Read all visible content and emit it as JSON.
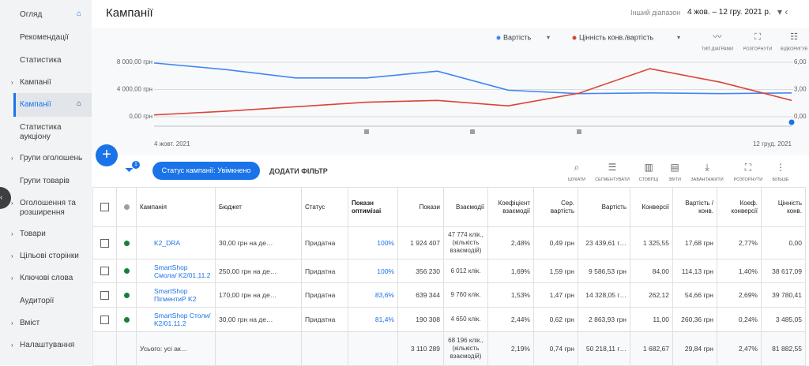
{
  "sidebar": {
    "items": [
      "Огляд",
      "Рекомендації",
      "Статистика",
      "Кампанії",
      "Кампанії",
      "Статистика аукціону",
      "Групи оголошень",
      "Групи товарів",
      "Оголошення та розширення",
      "Товари",
      "Цільові сторінки",
      "Ключові слова",
      "Аудиторії",
      "Вміст",
      "Налаштування"
    ]
  },
  "header": {
    "title": "Кампанії",
    "range_label": "Інший діапазон",
    "range": "4 жов. – 12 гру. 2021 р."
  },
  "chart_tools": [
    "ТИП ДІАГРАМИ",
    "РОЗГОРНУТИ",
    "ВІДКОРИГУВ"
  ],
  "chart_data": {
    "type": "line",
    "categories": [
      "4 жовт. 2021",
      null,
      null,
      null,
      null,
      null,
      null,
      null,
      null,
      "12 груд. 2021"
    ],
    "series": [
      {
        "name": "Вартість",
        "color": "#4285f4",
        "values": [
          7900,
          6950,
          5700,
          5700,
          6700,
          3900,
          3400,
          3500,
          3400,
          3500
        ]
      },
      {
        "name": "Цінність конв./вартість",
        "color": "#db4437",
        "axis": "y2",
        "values": [
          0.2,
          0.6,
          1.1,
          1.6,
          1.8,
          1.2,
          2.6,
          5.3,
          3.8,
          1.8
        ]
      }
    ],
    "ylim": [
      0,
      8000
    ],
    "yticks": [
      {
        "value": 0,
        "label": "0,00 грн"
      },
      {
        "value": 4000,
        "label": "4 000,00 грн"
      },
      {
        "value": 8000,
        "label": "8 000,00 грн"
      }
    ],
    "y2lim": [
      0,
      6
    ],
    "y2ticks": [
      {
        "value": 0,
        "label": "0,00"
      },
      {
        "value": 3,
        "label": "3,00"
      },
      {
        "value": 6,
        "label": "6,00"
      }
    ],
    "grid": true
  },
  "toolbar": {
    "filter_count": "1",
    "chip": "Статус кампанії: Увімкнено",
    "add_filter": "ДОДАТИ ФІЛЬТР",
    "tools": [
      "ШУКАТИ",
      "СЕГМЕНТУВАТИ",
      "СТОВПЦІ",
      "ЗВІТИ",
      "ЗАВАНТАЖИТИ",
      "РОЗГОРНУТИ",
      "БІЛЬШЕ"
    ]
  },
  "table": {
    "columns": [
      "Кампанія",
      "Бюджет",
      "Статус",
      "Показн оптимізаі",
      "Покази",
      "Взаємодії",
      "Коефіцієнт взаємодії",
      "Сер. вартість",
      "Вартість",
      "Конверсії",
      "Вартість / конв.",
      "Коеф. конверсії",
      "Цінність конв."
    ],
    "rows": [
      [
        "K2_DRA",
        "30,00 грн на де…",
        "Придатна",
        "100%",
        "1 924 407",
        "47 774 клік., (кількість взаємодій)",
        "2,48%",
        "0,49 грн",
        "23 439,61 г…",
        "1 325,55",
        "17,68 грн",
        "2,77%",
        "0,00"
      ],
      [
        "SmartShop Смола/ K2/01.11.2",
        "250,00 грн на де…",
        "Придатна",
        "100%",
        "356 230",
        "6 012 клік.",
        "1,69%",
        "1,59 грн",
        "9 586,53 грн",
        "84,00",
        "114,13 грн",
        "1,40%",
        "38 617,09"
      ],
      [
        "SmartShop ПігментиР K2",
        "170,00 грн на де…",
        "Придатна",
        "83,6%",
        "639 344",
        "9 760 клік.",
        "1,53%",
        "1,47 грн",
        "14 328,05 г…",
        "262,12",
        "54,66 грн",
        "2,69%",
        "39 780,41"
      ],
      [
        "SmartShop Столи/ K2/01.11.2",
        "30,00 грн на де…",
        "Придатна",
        "81,4%",
        "190 308",
        "4 650 клік.",
        "2,44%",
        "0,62 грн",
        "2 863,93 грн",
        "11,00",
        "260,36 грн",
        "0,24%",
        "3 485,05"
      ]
    ],
    "total": [
      "Усього: усі ак…",
      "",
      "",
      "",
      "3 110 289",
      "68 196 клік., (кількість взаємодій)",
      "2,19%",
      "0,74 грн",
      "50 218,11 г…",
      "1 682,67",
      "29,84 грн",
      "2,47%",
      "81 882,55"
    ]
  }
}
